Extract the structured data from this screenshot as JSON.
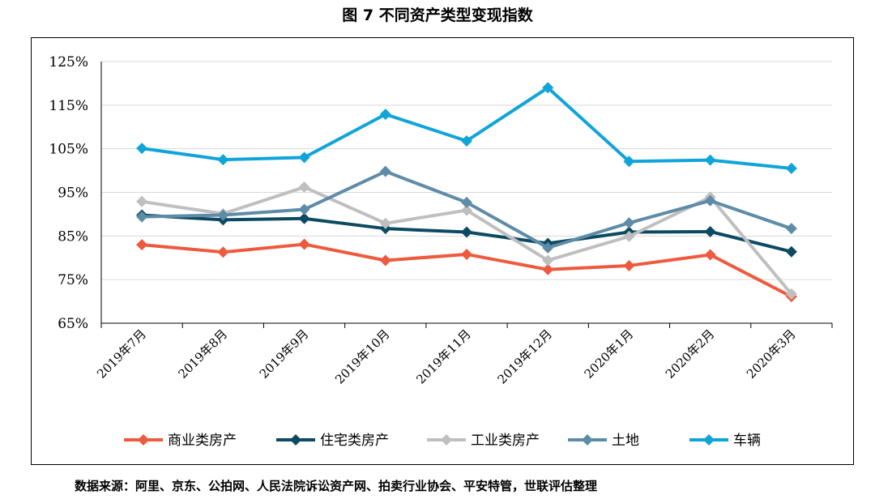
{
  "chart_data": {
    "type": "line",
    "title": "图 7 不同资产类型变现指数",
    "xlabel": "",
    "ylabel": "",
    "categories": [
      "2019年7月",
      "2019年8月",
      "2019年9月",
      "2019年10月",
      "2019年11月",
      "2019年12月",
      "2020年1月",
      "2020年2月",
      "2020年3月"
    ],
    "ylim": [
      65,
      125
    ],
    "yticks": [
      65,
      75,
      85,
      95,
      105,
      115,
      125
    ],
    "ytick_labels": [
      "65%",
      "75%",
      "85%",
      "95%",
      "105%",
      "115%",
      "125%"
    ],
    "grid": true,
    "legend_position": "bottom",
    "series": [
      {
        "name": "商业类房产",
        "color": "#EE5A3E",
        "values": [
          83.0,
          81.3,
          83.1,
          79.4,
          80.8,
          77.3,
          78.2,
          80.7,
          71.1
        ]
      },
      {
        "name": "住宅类房产",
        "color": "#0C4A62",
        "values": [
          89.8,
          88.7,
          89.0,
          86.7,
          85.9,
          83.3,
          85.9,
          86.0,
          81.4
        ]
      },
      {
        "name": "工业类房产",
        "color": "#BFBFBF",
        "values": [
          92.9,
          90.1,
          96.2,
          87.9,
          90.9,
          79.4,
          84.9,
          93.9,
          71.7
        ]
      },
      {
        "name": "土地",
        "color": "#5E8CA7",
        "values": [
          89.4,
          89.8,
          91.1,
          99.8,
          92.7,
          82.3,
          88.0,
          93.1,
          86.7
        ]
      },
      {
        "name": "车辆",
        "color": "#10A4D9",
        "values": [
          105.1,
          102.5,
          103.0,
          112.9,
          106.8,
          119.0,
          102.1,
          102.4,
          100.5
        ]
      }
    ]
  },
  "footer": {
    "source": "数据来源：阿里、京东、公拍网、人民法院诉讼资产网、拍卖行业协会、平安特管，世联评估整理"
  }
}
